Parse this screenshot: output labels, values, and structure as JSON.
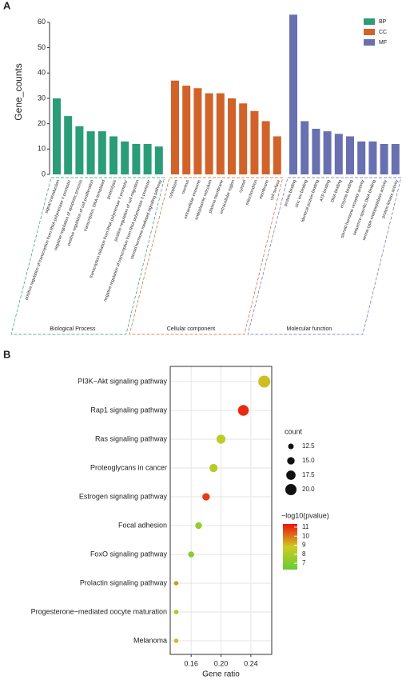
{
  "chart_data": [
    {
      "type": "bar",
      "panel_label": "A",
      "ylabel": "Gene_counts",
      "ylim": [
        0,
        65
      ],
      "yticks": [
        0,
        10,
        20,
        30,
        40,
        50,
        60
      ],
      "legend": "top-right",
      "groups": [
        {
          "name": "BP",
          "label": "Biological Process",
          "color": "#2a9d78",
          "categories": [
            "signal transduction",
            "positive regulation of transcription from RNA polymerase II promoter",
            "negative regulation of apoptotic process",
            "positive regulation of cell proliferation",
            "transcription, DNA-templated",
            "proteolysis",
            "transcription initiation from RNA polymerase II promoter",
            "positive regulation of cell migration",
            "negative regulation of transcription from RNA polymerase II promoter",
            "steroid hormone mediated signaling pathway"
          ],
          "label_colors": [
            "#d7301f",
            "#2a9d78",
            "#d7301f",
            "#d7301f",
            "#2a9d78",
            "#d7301f",
            "#2a9d78",
            "#d7301f",
            "#2a9d78",
            "#2a9d78"
          ],
          "values": [
            30,
            23,
            19,
            17,
            17,
            15,
            13,
            12,
            12,
            11
          ]
        },
        {
          "name": "CC",
          "label": "Cellular component",
          "color": "#d1622a",
          "categories": [
            "cytoplasm",
            "nucleus",
            "extracellular exosome",
            "endoplasmic reticulum",
            "plasma membrane",
            "extracellular region",
            "cytosol",
            "mitochondrion",
            "membrane",
            "cell surface"
          ],
          "label_colors": [
            "#d7301f",
            "#d1622a",
            "#d1622a",
            "#d1622a",
            "#d1622a",
            "#d1622a",
            "#d1622a",
            "#d1622a",
            "#d1622a",
            "#d7301f"
          ],
          "values": [
            37,
            35,
            34,
            32,
            32,
            30,
            28,
            25,
            21,
            15
          ]
        },
        {
          "name": "MF",
          "label": "Molecular function",
          "color": "#6870b0",
          "categories": [
            "protein binding",
            "zinc ion binding",
            "identical protein binding",
            "ATP binding",
            "DNA binding",
            "enzyme binding",
            "steroid hormone receptor activity",
            "sequence-specific DNA binding",
            "serine-type endopeptidase activity",
            "protein kinase activity"
          ],
          "label_colors": [
            "#d7301f",
            "#6870b0",
            "#6870b0",
            "#6870b0",
            "#6870b0",
            "#6870b0",
            "#6870b0",
            "#6870b0",
            "#6870b0",
            "#6870b0"
          ],
          "values": [
            63,
            21,
            18,
            17,
            16,
            15,
            13,
            13,
            12,
            12
          ]
        }
      ]
    },
    {
      "type": "scatter",
      "panel_label": "B",
      "xlabel": "Gene ratio",
      "grid": true,
      "categories": [
        "PI3K−Akt signaling pathway",
        "Rap1 signaling pathway",
        "Ras signaling pathway",
        "Proteoglycans in cancer",
        "Estrogen signaling pathway",
        "Focal adhesion",
        "FoxO signaling pathway",
        "Prolactin signaling pathway",
        "Progesterone−mediated oocyte maturation",
        "Melanoma"
      ],
      "label_colors": [
        "#d7301f",
        "#d7301f",
        "#222222",
        "#222222",
        "#222222",
        "#222222",
        "#222222",
        "#222222",
        "#222222",
        "#222222"
      ],
      "x": [
        0.258,
        0.23,
        0.2,
        0.19,
        0.18,
        0.17,
        0.16,
        0.14,
        0.14,
        0.14
      ],
      "size": [
        21,
        19.5,
        17,
        16,
        15,
        14,
        13,
        11,
        11,
        11
      ],
      "color_values": [
        9,
        11,
        8.5,
        8.3,
        10.8,
        7.5,
        7.2,
        9.5,
        7.8,
        9
      ],
      "xlim": [
        0.132,
        0.268
      ],
      "xticks": [
        0.16,
        {
          "value": 0.2,
          "label": "0.20"
        },
        0.24
      ],
      "size_title": "count",
      "size_ticks": [
        12.5,
        {
          "value": 15,
          "label": "15.0"
        },
        17.5,
        {
          "value": 20,
          "label": "20.0"
        }
      ],
      "color_title": "−log10(pvalue)",
      "color_lim": [
        6.3,
        11.35
      ],
      "color_ticks": [
        7,
        8,
        9,
        10,
        11
      ],
      "color_scale": [
        "#66cc33",
        "#cccc22",
        "#ee1111"
      ]
    }
  ]
}
